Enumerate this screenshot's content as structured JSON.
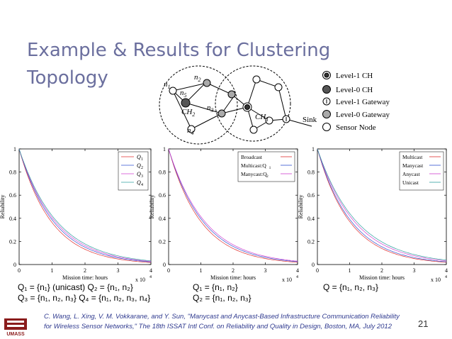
{
  "slide": {
    "title_line1": "Example & Results for Clustering",
    "title_line2": "Topology",
    "page_number": "21",
    "logo_text": "UMASS",
    "footer_line1": "C. Wang, L. Xing, V. M. Vokkarane, and Y. Sun, \"Manycast and Anycast-Based Infrastructure Communication Reliability",
    "footer_line2": "for Wireless Sensor Networks,\" The 18th ISSAT Intl Conf. on Reliability and Quality in Design, Boston, MA, July 2012"
  },
  "diagram": {
    "labels": {
      "n1": "n",
      "n1_sub": "1",
      "n2": "n",
      "n2_sub": "2",
      "n3": "n",
      "n3_sub": "3",
      "n4": "n",
      "n4_sub": "4",
      "n5": "n",
      "n5_sub": "5",
      "ch2": "CH",
      "ch2_sub": "2",
      "ch1": "CH",
      "ch1_sub": "1",
      "sink": "Sink"
    },
    "legend": [
      {
        "label": "Level-1 CH",
        "symbol": "level1-ch"
      },
      {
        "label": "Level-0 CH",
        "symbol": "level0-ch"
      },
      {
        "label": "Level-1 Gateway",
        "symbol": "level1-gateway"
      },
      {
        "label": "Level-0 Gateway",
        "symbol": "level0-gateway"
      },
      {
        "label": "Sensor Node",
        "symbol": "sensor-node"
      }
    ],
    "colors": {
      "level0_ch": "#555555",
      "level0_gateway": "#aaaaaa"
    }
  },
  "captions": {
    "c1_line1": "Q₁ = {n₁} (unicast)  Q₂ = {n₁, n₂}",
    "c1_line2": "Q₃ = {n₁, n₂, n₃}  Q₄ = {n₁, n₂, n₃, n₄}",
    "c2_line1": "Q₁ = {n₁, n₂}",
    "c2_line2": "Q₂ = {n₁, n₂, n₃}",
    "c3_line1": "Q = {n₁, n₂, n₃}"
  },
  "chart_data": [
    {
      "type": "line",
      "xlabel": "Mission time: hours",
      "ylabel": "Reliability",
      "xlim": [
        0,
        40000
      ],
      "ylim": [
        0,
        1
      ],
      "x_multiplier_label": "x 10",
      "x_multiplier_exp": "4",
      "xticks": [
        "0",
        "1",
        "2",
        "3",
        "4"
      ],
      "yticks": [
        "0",
        "0.2",
        "0.4",
        "0.6",
        "0.8",
        "1"
      ],
      "legend_placement": "top-right",
      "series": [
        {
          "name": "Q",
          "sub": "1",
          "color": "#e03030",
          "decay": 7400
        },
        {
          "name": "Q",
          "sub": "2",
          "color": "#3050d0",
          "decay": 7900
        },
        {
          "name": "Q",
          "sub": "3",
          "color": "#d040d0",
          "decay": 8300
        },
        {
          "name": "Q",
          "sub": "4",
          "color": "#30a0a0",
          "decay": 8700
        }
      ]
    },
    {
      "type": "line",
      "xlabel": "Mission time: hours",
      "ylabel": "Reliability",
      "xlim": [
        0,
        40000
      ],
      "ylim": [
        0,
        1
      ],
      "x_multiplier_label": "x 10",
      "x_multiplier_exp": "4",
      "xticks": [
        "0",
        "1",
        "2",
        "3",
        "4"
      ],
      "yticks": [
        "0",
        "0.2",
        "0.4",
        "0.6",
        "0.8",
        "1"
      ],
      "legend_placement": "top-right",
      "series": [
        {
          "name": "Broadcast",
          "sub": "",
          "color": "#e03030",
          "decay": 7600
        },
        {
          "name": "Multicast:Q",
          "sub": "1",
          "color": "#3050d0",
          "decay": 8100
        },
        {
          "name": "Manycast:Q",
          "sub": "2",
          "color": "#d040d0",
          "decay": 8500
        }
      ]
    },
    {
      "type": "line",
      "xlabel": "Mission time: hours",
      "ylabel": "Reliability",
      "xlim": [
        0,
        40000
      ],
      "ylim": [
        0,
        1
      ],
      "x_multiplier_label": "x 10",
      "x_multiplier_exp": "4",
      "xticks": [
        "0",
        "1",
        "2",
        "3",
        "4"
      ],
      "yticks": [
        "0",
        "0.2",
        "0.4",
        "0.6",
        "0.8",
        "1"
      ],
      "legend_placement": "top-right",
      "series": [
        {
          "name": "Multicast",
          "sub": "",
          "color": "#e03030",
          "decay": 7600
        },
        {
          "name": "Manycast",
          "sub": "",
          "color": "#3050d0",
          "decay": 8000
        },
        {
          "name": "Anycast",
          "sub": "",
          "color": "#d040d0",
          "decay": 8700
        },
        {
          "name": "Unicast",
          "sub": "",
          "color": "#30a0a0",
          "decay": 9200
        }
      ]
    }
  ]
}
